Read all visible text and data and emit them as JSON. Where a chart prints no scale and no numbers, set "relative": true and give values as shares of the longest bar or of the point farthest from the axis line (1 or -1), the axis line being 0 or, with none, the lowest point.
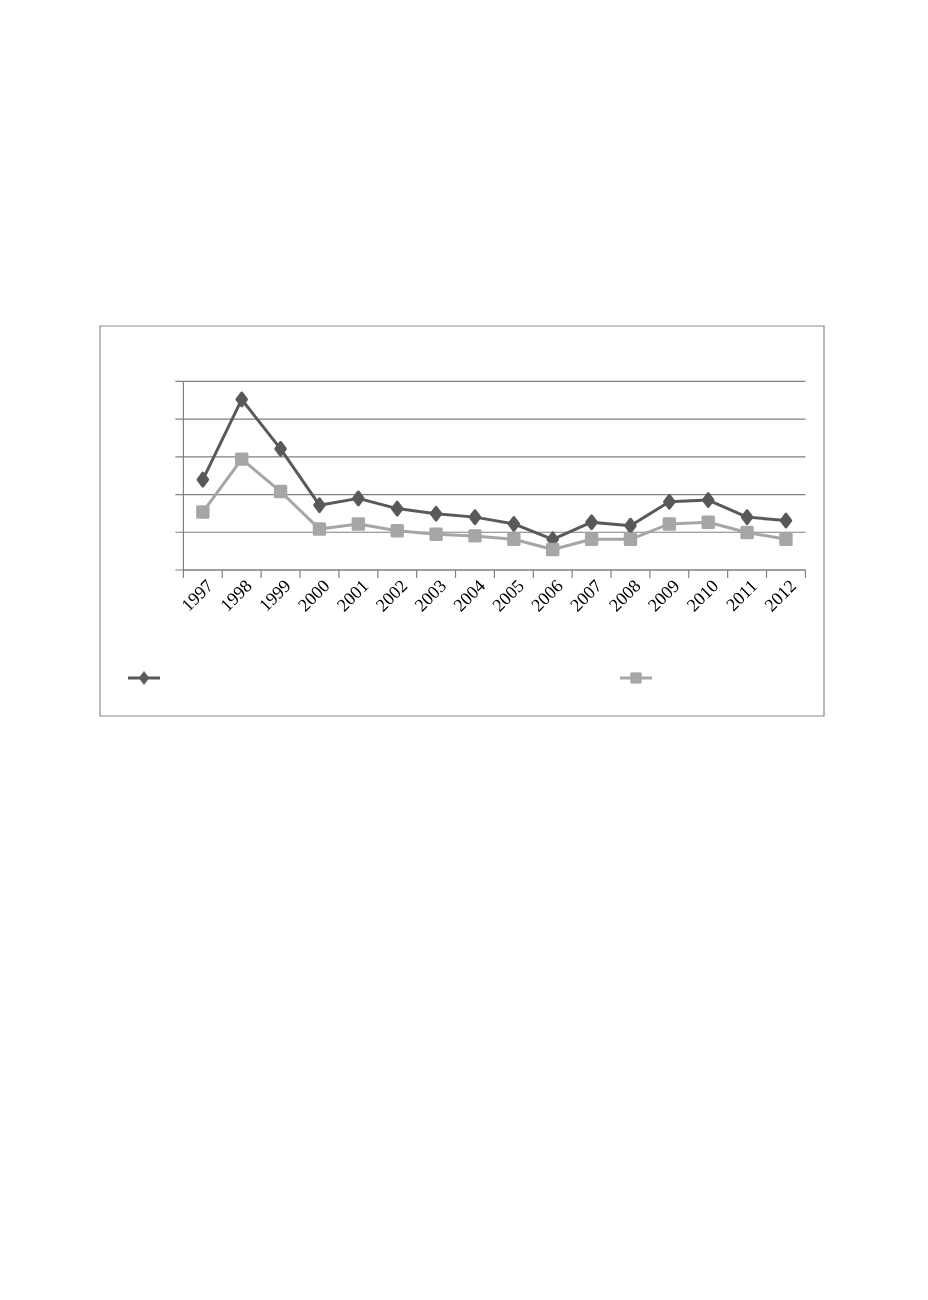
{
  "chart_data": {
    "type": "line",
    "relative": true,
    "categories": [
      "1997",
      "1998",
      "1999",
      "2000",
      "2001",
      "2002",
      "2003",
      "2004",
      "2005",
      "2006",
      "2007",
      "2008",
      "2009",
      "2010",
      "2011",
      "2012"
    ],
    "series": [
      {
        "color": "#595959",
        "marker": "diamond",
        "values": [
          0.53,
          1,
          0.71,
          0.38,
          0.42,
          0.36,
          0.33,
          0.31,
          0.27,
          0.18,
          0.28,
          0.26,
          0.4,
          0.41,
          0.31,
          0.29
        ]
      },
      {
        "color": "#a6a6a6",
        "marker": "square",
        "values": [
          0.34,
          0.65,
          0.46,
          0.24,
          0.27,
          0.23,
          0.21,
          0.2,
          0.18,
          0.12,
          0.18,
          0.18,
          0.27,
          0.28,
          0.22,
          0.18
        ]
      }
    ],
    "grid": "y"
  }
}
